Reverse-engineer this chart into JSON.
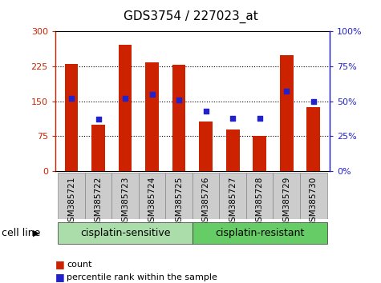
{
  "title": "GDS3754 / 227023_at",
  "categories": [
    "GSM385721",
    "GSM385722",
    "GSM385723",
    "GSM385724",
    "GSM385725",
    "GSM385726",
    "GSM385727",
    "GSM385728",
    "GSM385729",
    "GSM385730"
  ],
  "count_values": [
    230,
    100,
    270,
    233,
    228,
    107,
    90,
    75,
    248,
    137
  ],
  "percentile_values": [
    52,
    37,
    52,
    55,
    51,
    43,
    38,
    38,
    57,
    50
  ],
  "bar_color": "#cc2200",
  "dot_color": "#2222cc",
  "left_ylim": [
    0,
    300
  ],
  "right_ylim": [
    0,
    100
  ],
  "left_yticks": [
    0,
    75,
    150,
    225,
    300
  ],
  "right_yticks": [
    0,
    25,
    50,
    75,
    100
  ],
  "right_yticklabels": [
    "0%",
    "25%",
    "50%",
    "75%",
    "100%"
  ],
  "hlines": [
    75,
    150,
    225
  ],
  "group_labels": [
    "cisplatin-sensitive",
    "cisplatin-resistant"
  ],
  "group_ranges": [
    [
      0,
      4
    ],
    [
      5,
      9
    ]
  ],
  "group_colors": [
    "#aaddaa",
    "#66cc66"
  ],
  "cell_line_label": "cell line",
  "legend_count_label": "count",
  "legend_percentile_label": "percentile rank within the sample",
  "bar_width": 0.5,
  "bg_color": "#ffffff",
  "tick_area_color": "#cccccc",
  "title_fontsize": 11,
  "axis_fontsize": 8,
  "label_fontsize": 7.5,
  "legend_fontsize": 8
}
